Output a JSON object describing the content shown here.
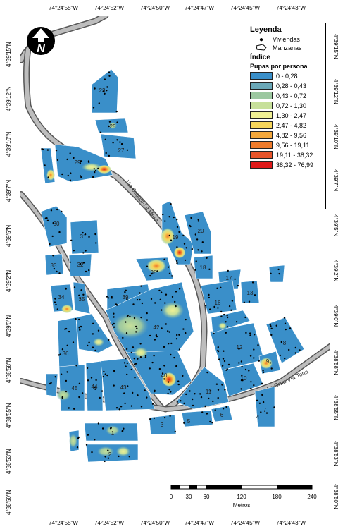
{
  "coords": {
    "top": [
      "74°24'55\"W",
      "74°24'52\"W",
      "74°24'50\"W",
      "74°24'47\"W",
      "74°24'45\"W",
      "74°24'43\"W"
    ],
    "bottom": [
      "74°24'55\"W",
      "74°24'52\"W",
      "74°24'50\"W",
      "74°24'47\"W",
      "74°24'45\"W",
      "74°24'43\"W"
    ],
    "left": [
      "4°39'15\"N",
      "4°39'12\"N",
      "4°39'10\"N",
      "4°39'7\"N",
      "4°39'5\"N",
      "4°39'2\"N",
      "4°39'0\"N",
      "4°38'58\"N",
      "4°38'55\"N",
      "4°38'53\"N",
      "4°38'50\"N"
    ],
    "right": [
      "4°39'15\"N",
      "4°39'12\"N",
      "4°39'10\"N",
      "4°39'7\"N",
      "4°39'5\"N",
      "4°39'2\"N",
      "4°39'0\"N",
      "4°38'58\"N",
      "4°38'55\"N",
      "4°38'53\"N",
      "4°38'50\"N"
    ]
  },
  "legend": {
    "title": "Leyenda",
    "viviendas": "Viviendas",
    "manzanas": "Manzanas",
    "indice": "Índice",
    "pupas": "Pupas por persona",
    "classes": [
      {
        "label": "0 - 0,28",
        "color": "#3a8fc9"
      },
      {
        "label": "0,28 - 0,43",
        "color": "#6aa8b8"
      },
      {
        "label": "0,43 - 0,72",
        "color": "#9cc8a0"
      },
      {
        "label": "0,72 - 1,30",
        "color": "#c7e09a"
      },
      {
        "label": "1,30 - 2,47",
        "color": "#f0f094"
      },
      {
        "label": "2,47 - 4,82",
        "color": "#f7d65a"
      },
      {
        "label": "4,82 - 9,56",
        "color": "#f4a83c"
      },
      {
        "label": "9,56 - 19,11",
        "color": "#ef7b2c"
      },
      {
        "label": "19,11 - 38,32",
        "color": "#e8542a"
      },
      {
        "label": "38,32 - 76,99",
        "color": "#e01a1a"
      }
    ]
  },
  "roads": {
    "road1": "Via Bogotá-La Mesa",
    "road2": "Via La Gran Vía-Tena"
  },
  "blocks": [
    "23",
    "25",
    "27",
    "29",
    "30",
    "31",
    "33",
    "32",
    "34",
    "35",
    "36",
    "45",
    "44",
    "43",
    "39",
    "38",
    "42",
    "40",
    "19",
    "20",
    "18",
    "17",
    "16",
    "13",
    "12",
    "8",
    "9",
    "10",
    "11",
    "7",
    "6",
    "5",
    "3",
    "1",
    "2",
    "4"
  ],
  "scale": {
    "labels": [
      "0",
      "30",
      "60",
      "120",
      "180",
      "240"
    ],
    "unit": "Metros"
  },
  "north_symbol": "N"
}
